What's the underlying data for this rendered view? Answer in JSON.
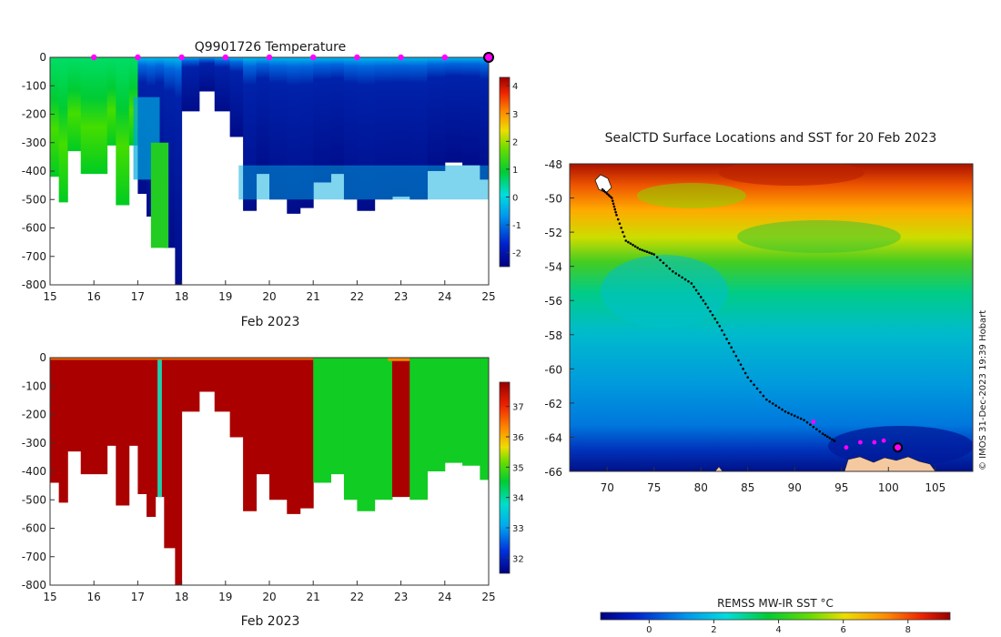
{
  "chart_data": [
    {
      "type": "heatmap",
      "title": "Q9901726  Temperature",
      "xlabel": "Feb 2023",
      "ylabel": "",
      "x_ticks": [
        "15",
        "16",
        "17",
        "18",
        "19",
        "20",
        "21",
        "22",
        "23",
        "24",
        "25"
      ],
      "xlim": [
        15,
        25
      ],
      "y_ticks": [
        "0",
        "-100",
        "-200",
        "-300",
        "-400",
        "-500",
        "-600",
        "-700",
        "-800"
      ],
      "ylim": [
        -800,
        0
      ],
      "colorbar": {
        "ticks": [
          "4",
          "3",
          "2",
          "1",
          "0",
          "-1",
          "-2"
        ],
        "range": [
          -2.5,
          4.3
        ]
      },
      "surface_markers_days": [
        16,
        17,
        18,
        19,
        20,
        21,
        22,
        23,
        24
      ],
      "current_marker_day": 25,
      "marker_color": "#ff00ff",
      "max_depth_profile": [
        {
          "day": 15.0,
          "depth": -420
        },
        {
          "day": 15.2,
          "depth": -510
        },
        {
          "day": 15.4,
          "depth": -330
        },
        {
          "day": 15.7,
          "depth": -410
        },
        {
          "day": 16.3,
          "depth": -310
        },
        {
          "day": 16.5,
          "depth": -520
        },
        {
          "day": 16.8,
          "depth": -310
        },
        {
          "day": 17.0,
          "depth": -480
        },
        {
          "day": 17.2,
          "depth": -560
        },
        {
          "day": 17.4,
          "depth": -490
        },
        {
          "day": 17.6,
          "depth": -670
        },
        {
          "day": 17.85,
          "depth": -800
        },
        {
          "day": 18.0,
          "depth": -190
        },
        {
          "day": 18.4,
          "depth": -120
        },
        {
          "day": 18.75,
          "depth": -190
        },
        {
          "day": 19.1,
          "depth": -280
        },
        {
          "day": 19.4,
          "depth": -540
        },
        {
          "day": 19.7,
          "depth": -410
        },
        {
          "day": 20.0,
          "depth": -500
        },
        {
          "day": 20.4,
          "depth": -550
        },
        {
          "day": 20.7,
          "depth": -530
        },
        {
          "day": 21.0,
          "depth": -440
        },
        {
          "day": 21.4,
          "depth": -410
        },
        {
          "day": 21.7,
          "depth": -500
        },
        {
          "day": 22.0,
          "depth": -540
        },
        {
          "day": 22.4,
          "depth": -500
        },
        {
          "day": 22.8,
          "depth": -490
        },
        {
          "day": 23.2,
          "depth": -500
        },
        {
          "day": 23.6,
          "depth": -400
        },
        {
          "day": 24.0,
          "depth": -370
        },
        {
          "day": 24.4,
          "depth": -380
        },
        {
          "day": 24.8,
          "depth": -430
        },
        {
          "day": 25.0,
          "depth": -400
        }
      ]
    },
    {
      "type": "heatmap",
      "title": "",
      "xlabel": "Feb 2023",
      "ylabel": "",
      "x_ticks": [
        "15",
        "16",
        "17",
        "18",
        "19",
        "20",
        "21",
        "22",
        "23",
        "24",
        "25"
      ],
      "xlim": [
        15,
        25
      ],
      "y_ticks": [
        "0",
        "-100",
        "-200",
        "-300",
        "-400",
        "-500",
        "-600",
        "-700",
        "-800"
      ],
      "ylim": [
        -800,
        0
      ],
      "colorbar": {
        "ticks": [
          "37",
          "36",
          "35",
          "34",
          "33",
          "32"
        ],
        "range": [
          31.5,
          37.8
        ]
      },
      "value_segments": [
        {
          "start_day": 15.0,
          "end_day": 20.95,
          "class": "high"
        },
        {
          "start_day": 20.95,
          "end_day": 22.7,
          "class": "mid"
        },
        {
          "start_day": 22.7,
          "end_day": 23.2,
          "class": "high"
        },
        {
          "start_day": 23.2,
          "end_day": 25.0,
          "class": "mid"
        }
      ],
      "max_depth_profile": [
        {
          "day": 15.0,
          "depth": -440
        },
        {
          "day": 15.2,
          "depth": -510
        },
        {
          "day": 15.4,
          "depth": -330
        },
        {
          "day": 15.7,
          "depth": -410
        },
        {
          "day": 16.3,
          "depth": -310
        },
        {
          "day": 16.5,
          "depth": -520
        },
        {
          "day": 16.8,
          "depth": -310
        },
        {
          "day": 17.0,
          "depth": -480
        },
        {
          "day": 17.2,
          "depth": -560
        },
        {
          "day": 17.4,
          "depth": -490
        },
        {
          "day": 17.6,
          "depth": -670
        },
        {
          "day": 17.85,
          "depth": -800
        },
        {
          "day": 18.0,
          "depth": -190
        },
        {
          "day": 18.4,
          "depth": -120
        },
        {
          "day": 18.75,
          "depth": -190
        },
        {
          "day": 19.1,
          "depth": -280
        },
        {
          "day": 19.4,
          "depth": -540
        },
        {
          "day": 19.7,
          "depth": -410
        },
        {
          "day": 20.0,
          "depth": -500
        },
        {
          "day": 20.4,
          "depth": -550
        },
        {
          "day": 20.7,
          "depth": -530
        },
        {
          "day": 21.0,
          "depth": -440
        },
        {
          "day": 21.4,
          "depth": -410
        },
        {
          "day": 21.7,
          "depth": -500
        },
        {
          "day": 22.0,
          "depth": -540
        },
        {
          "day": 22.4,
          "depth": -500
        },
        {
          "day": 22.8,
          "depth": -490
        },
        {
          "day": 23.2,
          "depth": -500
        },
        {
          "day": 23.6,
          "depth": -400
        },
        {
          "day": 24.0,
          "depth": -370
        },
        {
          "day": 24.4,
          "depth": -380
        },
        {
          "day": 24.8,
          "depth": -430
        },
        {
          "day": 25.0,
          "depth": -440
        }
      ]
    },
    {
      "type": "heatmap",
      "title": "SealCTD Surface Locations and SST for 20 Feb 2023",
      "xlabel": "",
      "ylabel": "",
      "x_ticks": [
        "70",
        "75",
        "80",
        "85",
        "90",
        "95",
        "100",
        "105"
      ],
      "xlim": [
        66,
        109
      ],
      "y_ticks": [
        "-48",
        "-50",
        "-52",
        "-54",
        "-56",
        "-58",
        "-60",
        "-62",
        "-64",
        "-66"
      ],
      "ylim": [
        -66,
        -48
      ],
      "colorbar": {
        "label": "REMSS MW-IR SST °C",
        "ticks": [
          "0",
          "2",
          "4",
          "6",
          "8"
        ],
        "range": [
          -1.5,
          9.3
        ]
      },
      "track_points": [
        {
          "lon": 69.5,
          "lat": -49.5
        },
        {
          "lon": 70.5,
          "lat": -50.0
        },
        {
          "lon": 71.0,
          "lat": -51.0
        },
        {
          "lon": 72.0,
          "lat": -52.5
        },
        {
          "lon": 73.5,
          "lat": -53.0
        },
        {
          "lon": 75.0,
          "lat": -53.3
        },
        {
          "lon": 77.0,
          "lat": -54.3
        },
        {
          "lon": 79.0,
          "lat": -55.0
        },
        {
          "lon": 80.5,
          "lat": -56.2
        },
        {
          "lon": 82.0,
          "lat": -57.5
        },
        {
          "lon": 83.5,
          "lat": -59.0
        },
        {
          "lon": 85.0,
          "lat": -60.5
        },
        {
          "lon": 87.0,
          "lat": -61.8
        },
        {
          "lon": 89.0,
          "lat": -62.5
        },
        {
          "lon": 91.0,
          "lat": -63.0
        },
        {
          "lon": 93.0,
          "lat": -63.8
        },
        {
          "lon": 94.5,
          "lat": -64.3
        }
      ],
      "recent_points": [
        {
          "lon": 92.0,
          "lat": -63.1
        },
        {
          "lon": 95.5,
          "lat": -64.6
        },
        {
          "lon": 97.0,
          "lat": -64.3
        },
        {
          "lon": 98.5,
          "lat": -64.3
        },
        {
          "lon": 99.5,
          "lat": -64.2
        }
      ],
      "current_point": {
        "lon": 101.0,
        "lat": -64.6
      }
    }
  ],
  "watermark": "© IMOS 31-Dec-2023 19:39 Hobart"
}
